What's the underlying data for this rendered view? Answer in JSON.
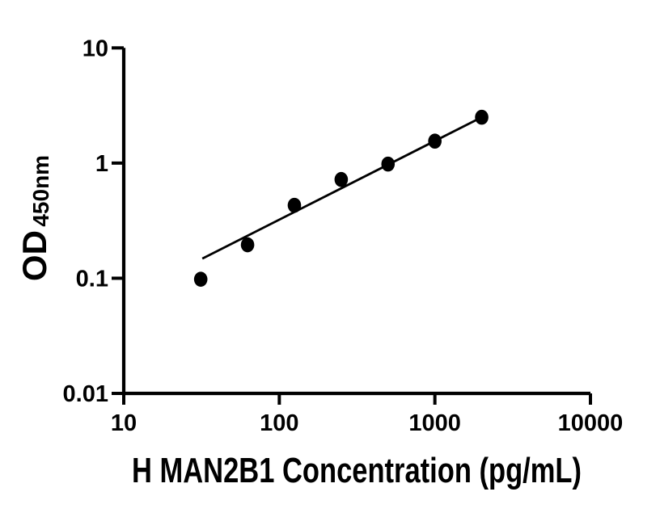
{
  "figure": {
    "background": "#ffffff",
    "ink": "#000000"
  },
  "chart_data": {
    "type": "scatter",
    "title": "",
    "xlabel": "H MAN2B1 Concentration (pg/mL)",
    "ylabel": "OD",
    "ylabel_subscript": "450nm",
    "x_scale": "log10",
    "y_scale": "log10",
    "xlim": [
      10,
      10000
    ],
    "ylim": [
      0.01,
      10
    ],
    "x_ticks": [
      10,
      100,
      1000,
      10000
    ],
    "x_tick_labels": [
      "10",
      "100",
      "1000",
      "10000"
    ],
    "y_ticks": [
      10,
      1,
      0.1,
      0.01
    ],
    "y_tick_labels": [
      "10",
      "1",
      "0.1",
      "0.01"
    ],
    "grid": false,
    "legend": "none",
    "marker_color": "#000000",
    "line_color": "#000000",
    "series": [
      {
        "name": "standard-points",
        "type": "scatter",
        "marker": "filled-circle",
        "points": [
          {
            "x": 31.25,
            "y": 0.098
          },
          {
            "x": 62.5,
            "y": 0.195
          },
          {
            "x": 125,
            "y": 0.43
          },
          {
            "x": 250,
            "y": 0.72
          },
          {
            "x": 500,
            "y": 0.98
          },
          {
            "x": 1000,
            "y": 1.55
          },
          {
            "x": 2000,
            "y": 2.5
          }
        ]
      },
      {
        "name": "fit-line",
        "type": "line",
        "points": [
          {
            "x": 32,
            "y": 0.148
          },
          {
            "x": 2000,
            "y": 2.5
          }
        ]
      }
    ]
  }
}
